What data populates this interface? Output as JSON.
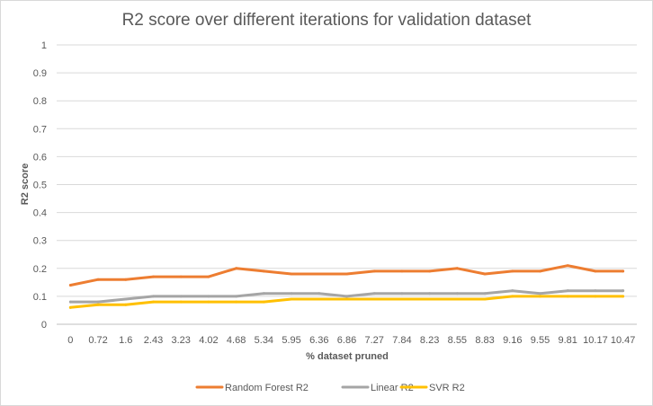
{
  "chart_data": {
    "type": "line",
    "title": "R2 score over different iterations for validation dataset",
    "xlabel": "% dataset pruned",
    "ylabel": "R2 score",
    "ylim": [
      0,
      1
    ],
    "yticks": [
      "0",
      "0.1",
      "0.2",
      "0.3",
      "0.4",
      "0.5",
      "0.6",
      "0.7",
      "0.8",
      "0.9",
      "1"
    ],
    "grid": true,
    "legend_position": "bottom",
    "categories": [
      "0",
      "0.72",
      "1.6",
      "2.43",
      "3.23",
      "4.02",
      "4.68",
      "5.34",
      "5.95",
      "6.36",
      "6.86",
      "7.27",
      "7.84",
      "8.23",
      "8.55",
      "8.83",
      "9.16",
      "9.55",
      "9.81",
      "10.17",
      "10.47"
    ],
    "series": [
      {
        "name": "Random Forest R2",
        "color": "#ed7d31",
        "values": [
          0.14,
          0.16,
          0.16,
          0.17,
          0.17,
          0.17,
          0.2,
          0.19,
          0.18,
          0.18,
          0.18,
          0.19,
          0.19,
          0.19,
          0.2,
          0.18,
          0.19,
          0.19,
          0.21,
          0.19,
          0.19
        ]
      },
      {
        "name": "Linear R2",
        "color": "#a5a5a5",
        "values": [
          0.08,
          0.08,
          0.09,
          0.1,
          0.1,
          0.1,
          0.1,
          0.11,
          0.11,
          0.11,
          0.1,
          0.11,
          0.11,
          0.11,
          0.11,
          0.11,
          0.12,
          0.11,
          0.12,
          0.12,
          0.12
        ]
      },
      {
        "name": "SVR R2",
        "color": "#ffc000",
        "values": [
          0.06,
          0.07,
          0.07,
          0.08,
          0.08,
          0.08,
          0.08,
          0.08,
          0.09,
          0.09,
          0.09,
          0.09,
          0.09,
          0.09,
          0.09,
          0.09,
          0.1,
          0.1,
          0.1,
          0.1,
          0.1
        ]
      }
    ]
  }
}
